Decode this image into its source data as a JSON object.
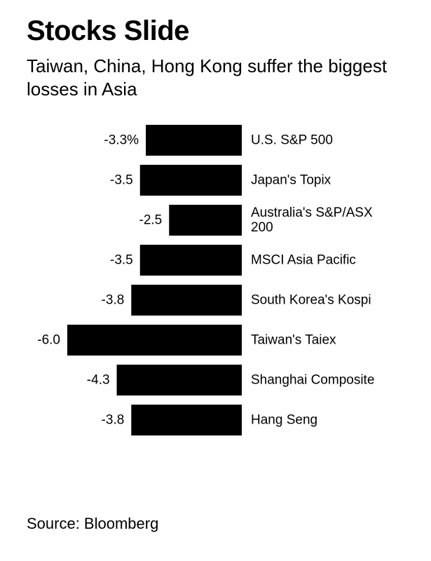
{
  "header": {
    "title": "Stocks Slide",
    "subtitle": "Taiwan, China, Hong Kong suffer the biggest losses in Asia"
  },
  "footer": {
    "source": "Source: Bloomberg"
  },
  "colors": {
    "bar": "#000000",
    "background": "#ffffff",
    "text": "#000000"
  },
  "chart_data": {
    "type": "bar",
    "orientation": "horizontal",
    "categories": [
      "U.S. S&P 500",
      "Japan's Topix",
      "Australia's S&P/ASX 200",
      "MSCI Asia Pacific",
      "South Korea's Kospi",
      "Taiwan's Taiex",
      "Shanghai Composite",
      "Hang Seng"
    ],
    "values": [
      -3.3,
      -3.5,
      -2.5,
      -3.5,
      -3.8,
      -6.0,
      -4.3,
      -3.8
    ],
    "value_labels": [
      "-3.3%",
      "-3.5",
      "-2.5",
      "-3.5",
      "-3.8",
      "-6.0",
      "-4.3",
      "-3.8"
    ],
    "category_label_lines": [
      [
        "U.S. S&P 500"
      ],
      [
        "Japan's Topix"
      ],
      [
        "Australia's S&P/ASX",
        "200"
      ],
      [
        "MSCI Asia Pacific"
      ],
      [
        "South Korea's Kospi"
      ],
      [
        "Taiwan's Taiex"
      ],
      [
        "Shanghai Composite"
      ],
      [
        "Hang Seng"
      ]
    ],
    "title": "Stocks Slide",
    "subtitle": "Taiwan, China, Hong Kong suffer the biggest losses in Asia",
    "xlabel": "",
    "ylabel": "",
    "xlim": [
      -6.0,
      0
    ],
    "grid": false,
    "legend": "none"
  }
}
